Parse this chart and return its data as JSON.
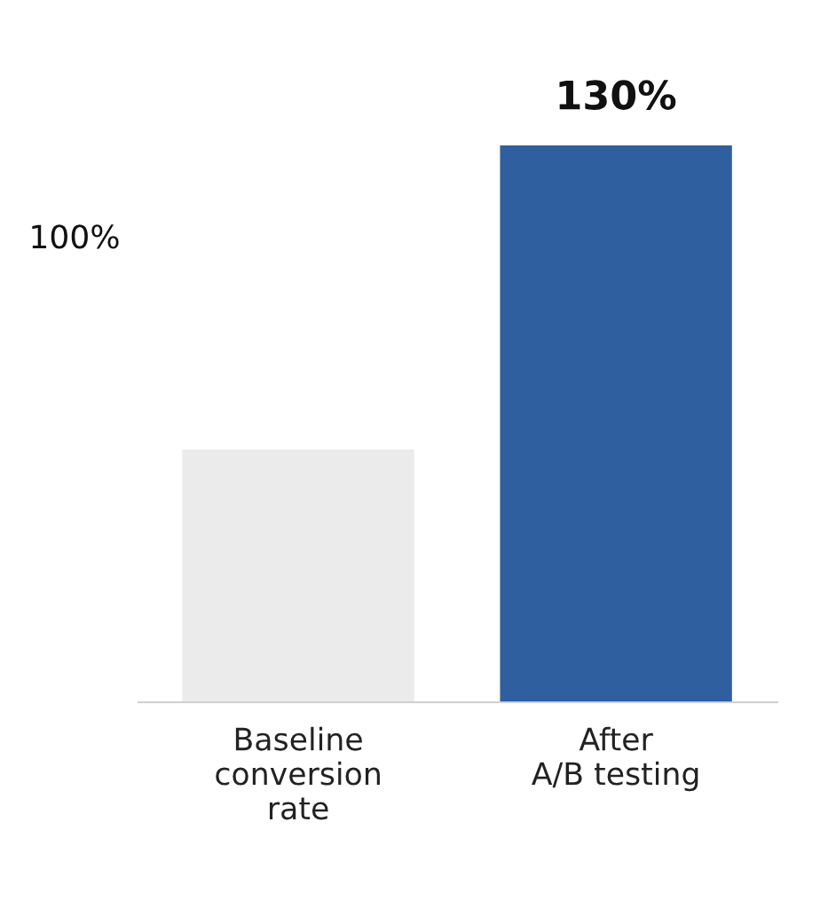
{
  "chart_data": {
    "type": "bar",
    "categories": [
      "Baseline\nconversion\nrate",
      "After\nA/B testing"
    ],
    "values": [
      59,
      130
    ],
    "colors": [
      "#ebebeb",
      "#2f5f9f"
    ],
    "value_labels": [
      null,
      "130%"
    ],
    "ylim": [
      0,
      130
    ],
    "tick_labels": "x",
    "annotations": [
      "100%"
    ],
    "grid": false,
    "legend": false
  }
}
